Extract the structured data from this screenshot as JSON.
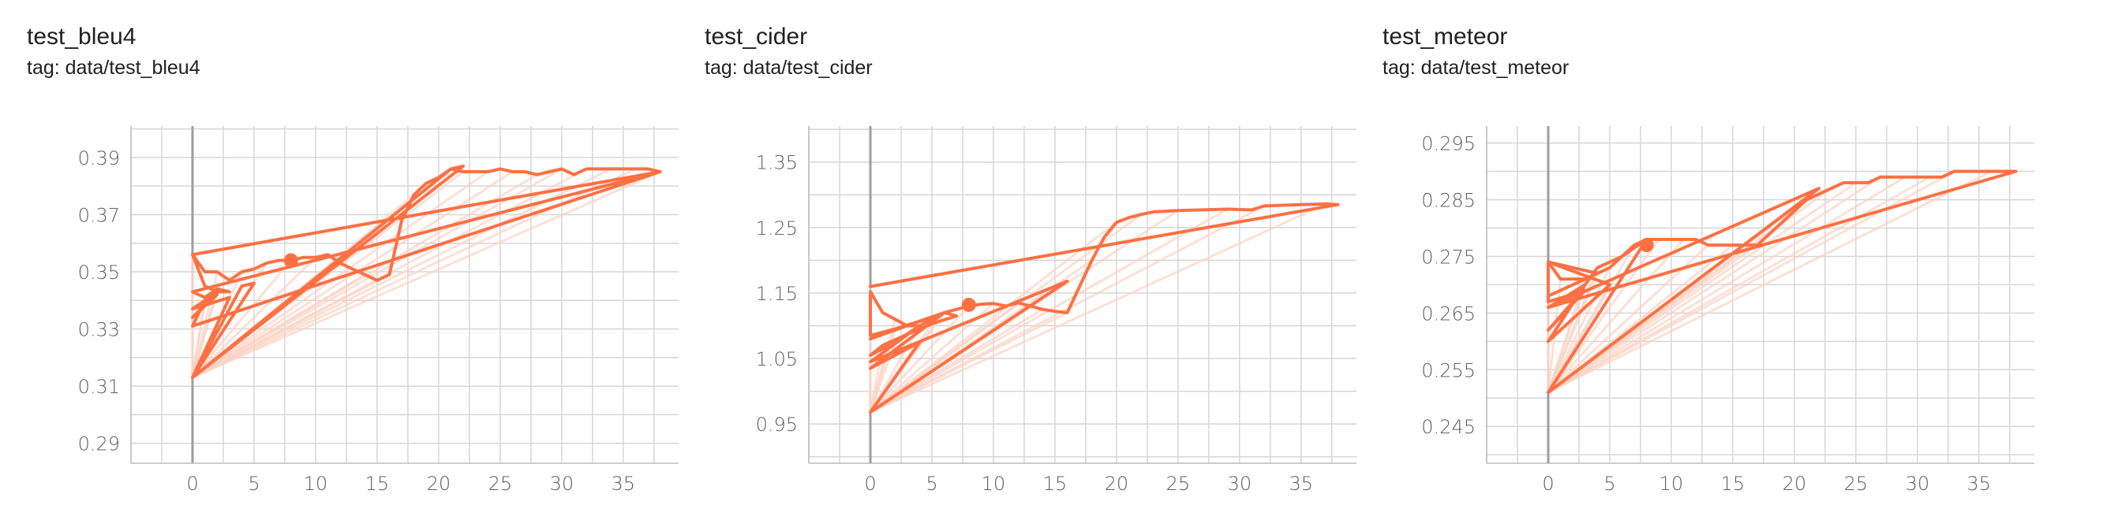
{
  "accent_color": "#ff7043",
  "ghost_color": "#fbd4c6",
  "charts": [
    {
      "title": "test_bleu4",
      "tag": "tag: data/test_bleu4",
      "ylabels": [
        "0.29",
        "0.31",
        "0.33",
        "0.35",
        "0.37",
        "0.39"
      ]
    },
    {
      "title": "test_cider",
      "tag": "tag: data/test_cider",
      "ylabels": [
        "0.95",
        "1.05",
        "1.15",
        "1.25",
        "1.35"
      ]
    },
    {
      "title": "test_meteor",
      "tag": "tag: data/test_meteor",
      "ylabels": [
        "0.245",
        "0.255",
        "0.265",
        "0.275",
        "0.285",
        "0.295"
      ]
    }
  ],
  "chart_data": [
    {
      "type": "line",
      "title": "test_bleu4",
      "subtitle": "tag: data/test_bleu4",
      "xlim": [
        -5,
        39.5
      ],
      "ylim": [
        0.283,
        0.401
      ],
      "xticks": [
        0,
        5,
        10,
        15,
        20,
        25,
        30,
        35
      ],
      "yticks": [
        0.29,
        0.31,
        0.33,
        0.35,
        0.37,
        0.39
      ],
      "grid": true,
      "series": [
        {
          "color": "#ff7043",
          "x": [
            0,
            38,
            0,
            1,
            2,
            3,
            2,
            1,
            0,
            1,
            2,
            3,
            4,
            5,
            6,
            7,
            8,
            9,
            10,
            11,
            12,
            13,
            14,
            15,
            16,
            17,
            18,
            19,
            20,
            21,
            22,
            23,
            24,
            25,
            26,
            27,
            28,
            29,
            30,
            31,
            32,
            33,
            34,
            35,
            36,
            37,
            38,
            0,
            1,
            2,
            0,
            2,
            1,
            0,
            3,
            0,
            5,
            4,
            0,
            22,
            21,
            0
          ],
          "y": [
            0.356,
            0.385,
            0.343,
            0.341,
            0.344,
            0.343,
            0.343,
            0.345,
            0.356,
            0.35,
            0.35,
            0.347,
            0.35,
            0.351,
            0.353,
            0.354,
            0.354,
            0.355,
            0.355,
            0.356,
            0.353,
            0.351,
            0.349,
            0.347,
            0.349,
            0.368,
            0.377,
            0.381,
            0.383,
            0.386,
            0.385,
            0.385,
            0.385,
            0.386,
            0.385,
            0.385,
            0.384,
            0.385,
            0.386,
            0.384,
            0.386,
            0.386,
            0.386,
            0.386,
            0.386,
            0.386,
            0.385,
            0.331,
            0.34,
            0.343,
            0.334,
            0.342,
            0.34,
            0.337,
            0.341,
            0.313,
            0.346,
            0.345,
            0.313,
            0.387,
            0.386,
            0.313
          ]
        }
      ],
      "highlight_point": {
        "x": 8,
        "y": 0.354
      }
    },
    {
      "type": "line",
      "title": "test_cider",
      "subtitle": "tag: data/test_cider",
      "xlim": [
        -5,
        39.5
      ],
      "ylim": [
        0.89,
        1.405
      ],
      "xticks": [
        0,
        5,
        10,
        15,
        20,
        25,
        30,
        35
      ],
      "yticks": [
        0.95,
        1.05,
        1.15,
        1.25,
        1.35
      ],
      "grid": true,
      "series": [
        {
          "color": "#ff7043",
          "x": [
            0,
            38,
            37,
            35,
            32,
            31,
            29,
            27,
            25,
            23,
            22,
            21,
            20,
            19,
            18,
            17,
            16,
            15,
            14,
            13,
            12,
            11,
            10,
            9,
            8,
            7,
            6,
            5,
            4,
            3,
            2,
            1,
            0,
            0,
            2,
            4,
            6,
            7,
            5,
            3,
            1,
            0,
            2,
            4,
            0,
            16,
            0,
            4,
            0,
            6,
            0
          ],
          "y": [
            1.16,
            1.285,
            1.286,
            1.285,
            1.283,
            1.277,
            1.278,
            1.277,
            1.276,
            1.274,
            1.27,
            1.265,
            1.258,
            1.235,
            1.2,
            1.16,
            1.12,
            1.122,
            1.125,
            1.13,
            1.135,
            1.13,
            1.134,
            1.133,
            1.13,
            1.125,
            1.12,
            1.11,
            1.1,
            1.1,
            1.11,
            1.12,
            1.152,
            1.085,
            1.095,
            1.107,
            1.12,
            1.115,
            1.103,
            1.087,
            1.07,
            1.055,
            1.075,
            1.1,
            1.045,
            1.168,
            0.968,
            1.075,
            1.035,
            1.12,
            1.08
          ]
        }
      ],
      "highlight_point": {
        "x": 8,
        "y": 1.132
      }
    },
    {
      "type": "line",
      "title": "test_meteor",
      "subtitle": "tag: data/test_meteor",
      "xlim": [
        -5,
        39.5
      ],
      "ylim": [
        0.2385,
        0.298
      ],
      "xticks": [
        0,
        5,
        10,
        15,
        20,
        25,
        30,
        35
      ],
      "yticks": [
        0.245,
        0.255,
        0.265,
        0.275,
        0.285,
        0.295
      ],
      "grid": true,
      "series": [
        {
          "color": "#ff7043",
          "x": [
            0,
            38,
            36,
            34,
            33,
            32,
            31,
            30,
            29,
            28,
            27,
            26,
            25,
            24,
            23,
            22,
            21,
            20,
            19,
            18,
            17,
            16,
            15,
            14,
            13,
            12,
            11,
            10,
            9,
            8,
            7,
            6,
            5,
            4,
            3,
            2,
            1,
            0,
            0,
            3,
            0,
            2,
            4,
            6,
            8,
            0,
            22,
            0,
            3,
            0,
            5,
            0,
            4,
            0
          ],
          "y": [
            0.266,
            0.29,
            0.29,
            0.29,
            0.29,
            0.289,
            0.289,
            0.289,
            0.289,
            0.289,
            0.289,
            0.288,
            0.288,
            0.288,
            0.287,
            0.286,
            0.285,
            0.283,
            0.281,
            0.279,
            0.277,
            0.277,
            0.277,
            0.277,
            0.277,
            0.278,
            0.278,
            0.278,
            0.278,
            0.278,
            0.277,
            0.275,
            0.273,
            0.272,
            0.271,
            0.271,
            0.271,
            0.274,
            0.267,
            0.269,
            0.262,
            0.267,
            0.273,
            0.275,
            0.278,
            0.251,
            0.287,
            0.266,
            0.27,
            0.26,
            0.27,
            0.274,
            0.272,
            0.268
          ]
        }
      ],
      "highlight_point": {
        "x": 8,
        "y": 0.277
      }
    }
  ]
}
